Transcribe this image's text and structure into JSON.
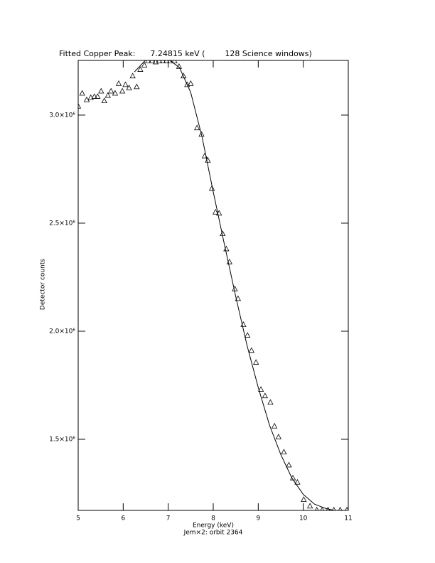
{
  "chart_data": {
    "type": "scatter",
    "title": "Fitted Copper Peak:      7.24815 keV (        128 Science windows)",
    "x_label": "Energy (keV)",
    "subtitle": "Jem×2: orbit 2364",
    "y_label": "Detector counts",
    "xlim": [
      5,
      11
    ],
    "xticks": [
      5,
      6,
      7,
      8,
      9,
      10,
      11
    ],
    "ylim": [
      1171000,
      3253000
    ],
    "yticks": [
      {
        "value": 1500000,
        "label": "1.5×10⁶"
      },
      {
        "value": 2000000,
        "label": "2.0×10⁶"
      },
      {
        "value": 2500000,
        "label": "2.5×10⁶"
      },
      {
        "value": 3000000,
        "label": "3.0×10⁶"
      }
    ],
    "color": "#000000",
    "points": {
      "x": [
        5.0,
        5.09,
        5.19,
        5.28,
        5.36,
        5.43,
        5.51,
        5.58,
        5.66,
        5.73,
        5.82,
        5.9,
        5.98,
        6.05,
        6.13,
        6.21,
        6.3,
        6.38,
        6.47,
        6.55,
        6.64,
        6.72,
        6.8,
        6.88,
        6.96,
        7.04,
        7.14,
        7.24,
        7.34,
        7.42,
        7.5,
        7.64,
        7.74,
        7.81,
        7.88,
        7.97,
        8.05,
        8.13,
        8.21,
        8.29,
        8.36,
        8.48,
        8.55,
        8.67,
        8.76,
        8.85,
        8.95,
        9.06,
        9.15,
        9.27,
        9.36,
        9.45,
        9.57,
        9.68,
        9.77,
        9.87,
        10.01,
        10.15,
        10.3,
        10.42,
        10.55,
        10.68,
        10.82,
        10.97
      ],
      "y": [
        3040000,
        3100000,
        3070000,
        3080000,
        3085000,
        3085000,
        3110000,
        3065000,
        3090000,
        3110000,
        3100000,
        3145000,
        3110000,
        3140000,
        3125000,
        3180000,
        3130000,
        3210000,
        3230000,
        3250000,
        3250000,
        3245000,
        3250000,
        3250000,
        3250000,
        3250000,
        3250000,
        3224000,
        3180000,
        3140000,
        3145000,
        2940000,
        2910000,
        2810000,
        2790000,
        2660000,
        2550000,
        2545000,
        2450000,
        2380000,
        2320000,
        2195000,
        2150000,
        2030000,
        1980000,
        1910000,
        1855000,
        1730000,
        1700000,
        1670000,
        1560000,
        1510000,
        1440000,
        1380000,
        1320000,
        1300000,
        1220000,
        1190000,
        1172000,
        1172000,
        1172000,
        1172000,
        1172000,
        1172000
      ]
    },
    "fit": {
      "x": [
        6.25,
        6.5,
        6.75,
        7.0,
        7.25,
        7.5,
        7.75,
        8.0,
        8.25,
        8.5,
        8.75,
        9.0,
        9.25,
        9.5,
        9.75,
        10.0,
        10.25,
        10.5,
        10.75,
        11.0
      ],
      "y": [
        3200000,
        3255000,
        3280000,
        3258000,
        3220000,
        3105000,
        2900000,
        2645000,
        2400000,
        2160000,
        1935000,
        1740000,
        1565000,
        1430000,
        1320000,
        1245000,
        1200000,
        1180000,
        1168000,
        1160000
      ]
    }
  }
}
